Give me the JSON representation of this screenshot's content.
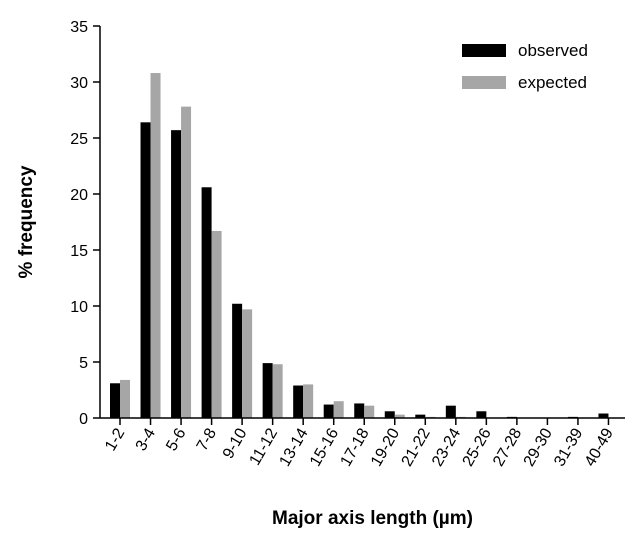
{
  "chart_data": {
    "type": "bar",
    "title": "",
    "xlabel": "Major axis length (µm)",
    "ylabel": "% frequency",
    "ylim": [
      0,
      35
    ],
    "yticks": [
      0,
      5,
      10,
      15,
      20,
      25,
      30,
      35
    ],
    "grid": false,
    "legend_position": "top-right",
    "categories": [
      "1-2",
      "3-4",
      "5-6",
      "7-8",
      "9-10",
      "11-12",
      "13-14",
      "15-16",
      "17-18",
      "19-20",
      "21-22",
      "23-24",
      "25-26",
      "27-28",
      "29-30",
      "31-39",
      "40-49"
    ],
    "series": [
      {
        "name": "observed",
        "color": "#000000",
        "values": [
          3.1,
          26.4,
          25.7,
          20.6,
          10.2,
          4.9,
          2.9,
          1.2,
          1.3,
          0.6,
          0.3,
          1.1,
          0.6,
          0.1,
          0.0,
          0.1,
          0.4
        ]
      },
      {
        "name": "expected",
        "color": "#a6a6a6",
        "values": [
          3.4,
          30.8,
          27.8,
          16.7,
          9.7,
          4.8,
          3.0,
          1.5,
          1.1,
          0.3,
          0.1,
          0.1,
          0.0,
          0.0,
          0.0,
          0.0,
          0.0
        ]
      }
    ]
  }
}
